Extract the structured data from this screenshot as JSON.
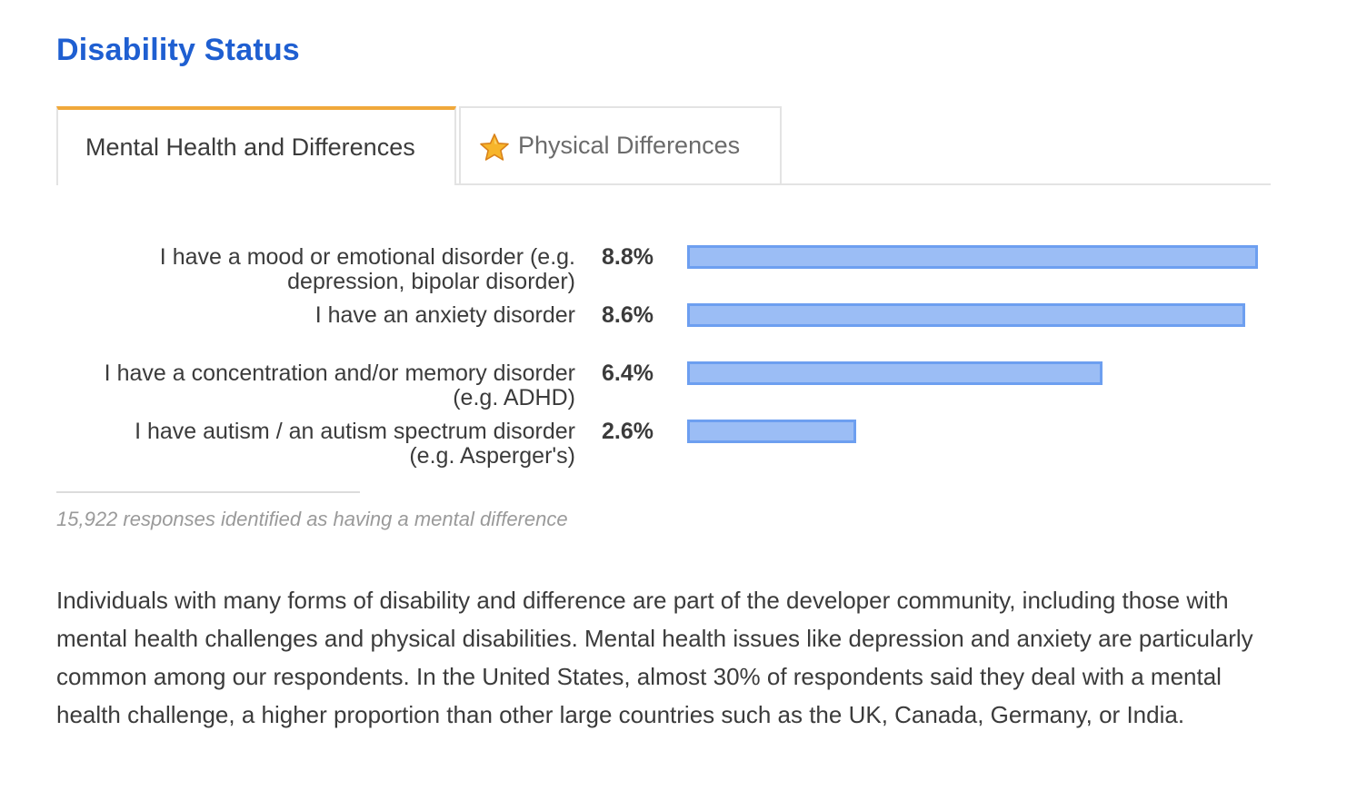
{
  "section": {
    "title": "Disability Status"
  },
  "tabs": [
    {
      "label": "Mental Health and Differences",
      "active": true
    },
    {
      "label": "Physical Differences",
      "active": false,
      "icon": "star-icon"
    }
  ],
  "colors": {
    "title": "#1f5fd1",
    "active_tab_accent": "#f0a83a",
    "bar_fill": "#9bbdf5",
    "bar_border": "#6d9ff0"
  },
  "chart_data": {
    "type": "bar",
    "orientation": "horizontal",
    "categories": [
      [
        "I have a mood or emotional disorder (e.g.",
        "depression, bipolar disorder)"
      ],
      [
        "I have an anxiety disorder"
      ],
      [
        "I have a concentration and/or memory disorder",
        "(e.g. ADHD)"
      ],
      [
        "I have autism / an autism spectrum disorder",
        "(e.g. Asperger's)"
      ]
    ],
    "values": [
      8.8,
      8.6,
      6.4,
      2.6
    ],
    "value_labels": [
      "8.8%",
      "8.6%",
      "6.4%",
      "2.6%"
    ],
    "unit": "%",
    "xlim": [
      0,
      8.8
    ],
    "grid": false,
    "legend": "none"
  },
  "footnote": "15,922 responses identified as having a mental difference",
  "body_text": "Individuals with many forms of disability and difference are part of the developer community, including those with mental health challenges and physical disabilities. Mental health issues like depression and anxiety are particularly common among our respondents. In the United States, almost 30% of respondents said they deal with a mental health challenge, a higher proportion than other large countries such as the UK, Canada, Germany, or India."
}
